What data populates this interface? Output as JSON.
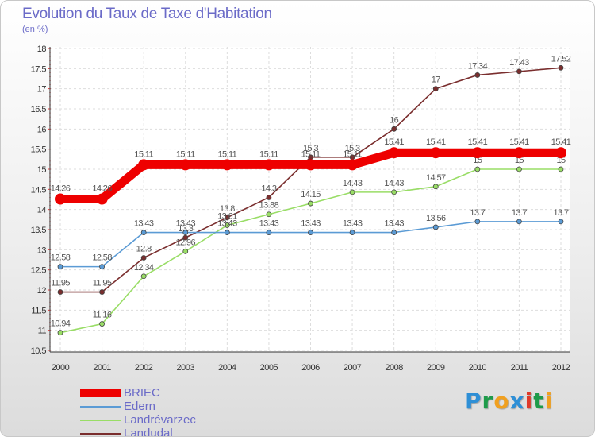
{
  "title": "Evolution du Taux de Taxe d'Habitation",
  "subtitle": "(en %)",
  "logo": {
    "text": "Proxiti",
    "letters": [
      {
        "char": "P",
        "color": "#2e8fd6"
      },
      {
        "char": "r",
        "color": "#1e9b4a"
      },
      {
        "char": "o",
        "color": "#f0a020"
      },
      {
        "char": "x",
        "color": "#2e8fd6"
      },
      {
        "char": "i",
        "color": "#e03a2a"
      },
      {
        "char": "t",
        "color": "#1e9b4a"
      },
      {
        "char": "i",
        "color": "#f0a020"
      }
    ]
  },
  "chart_data": {
    "type": "line",
    "title": "Evolution du Taux de Taxe d'Habitation",
    "ylabel": "(en %)",
    "xlabel": "",
    "x": [
      "2000",
      "2001",
      "2002",
      "2003",
      "2004",
      "2005",
      "2006",
      "2007",
      "2008",
      "2009",
      "2010",
      "2011",
      "2012"
    ],
    "ylim": [
      10.5,
      18
    ],
    "yticks": [
      "10.5",
      "11",
      "11.5",
      "12",
      "12.5",
      "13",
      "13.5",
      "14",
      "14.5",
      "15",
      "15.5",
      "16",
      "16.5",
      "17",
      "17.5",
      "18"
    ],
    "grid": true,
    "legend": "bottom-left",
    "series": [
      {
        "name": "BRIEC",
        "color": "#ee0000",
        "values": [
          14.26,
          14.26,
          15.11,
          15.11,
          15.11,
          15.11,
          15.11,
          15.11,
          15.41,
          15.41,
          15.41,
          15.41,
          15.41
        ],
        "labels": [
          "14.26",
          "14.26",
          "15.11",
          "15.11",
          "15.11",
          "15.11",
          "15.11",
          "15.11",
          "15.41",
          "15.41",
          "15.41",
          "15.41",
          "15.41"
        ]
      },
      {
        "name": "Edern",
        "color": "#5b9bd5",
        "values": [
          12.58,
          12.58,
          13.43,
          13.43,
          13.43,
          13.43,
          13.43,
          13.43,
          13.43,
          13.56,
          13.7,
          13.7,
          13.7
        ],
        "labels": [
          "12.58",
          "12.58",
          "13.43",
          "13.43",
          "13.43",
          "13.43",
          "13.43",
          "13.43",
          "13.43",
          "13.56",
          "13.7",
          "13.7",
          "13.7"
        ]
      },
      {
        "name": "Landrévarzec",
        "color": "#99dd66",
        "values": [
          10.94,
          11.16,
          12.34,
          12.96,
          13.61,
          13.88,
          14.15,
          14.43,
          14.43,
          14.57,
          15,
          15,
          15
        ],
        "labels": [
          "10.94",
          "11.16",
          "12.34",
          "12.96",
          "13.61",
          "13.88",
          "14.15",
          "14.43",
          "14.43",
          "14.57",
          "15",
          "15",
          "15"
        ]
      },
      {
        "name": "Landudal",
        "color": "#7a2e2e",
        "values": [
          11.95,
          11.95,
          12.8,
          13.3,
          13.8,
          14.3,
          15.3,
          15.3,
          16,
          17,
          17.34,
          17.43,
          17.52
        ],
        "labels": [
          "11.95",
          "11.95",
          "12.8",
          "13.3",
          "13.8",
          "14.3",
          "15.3",
          "15.3",
          "16",
          "17",
          "17.34",
          "17.43",
          "17.52"
        ]
      }
    ]
  }
}
